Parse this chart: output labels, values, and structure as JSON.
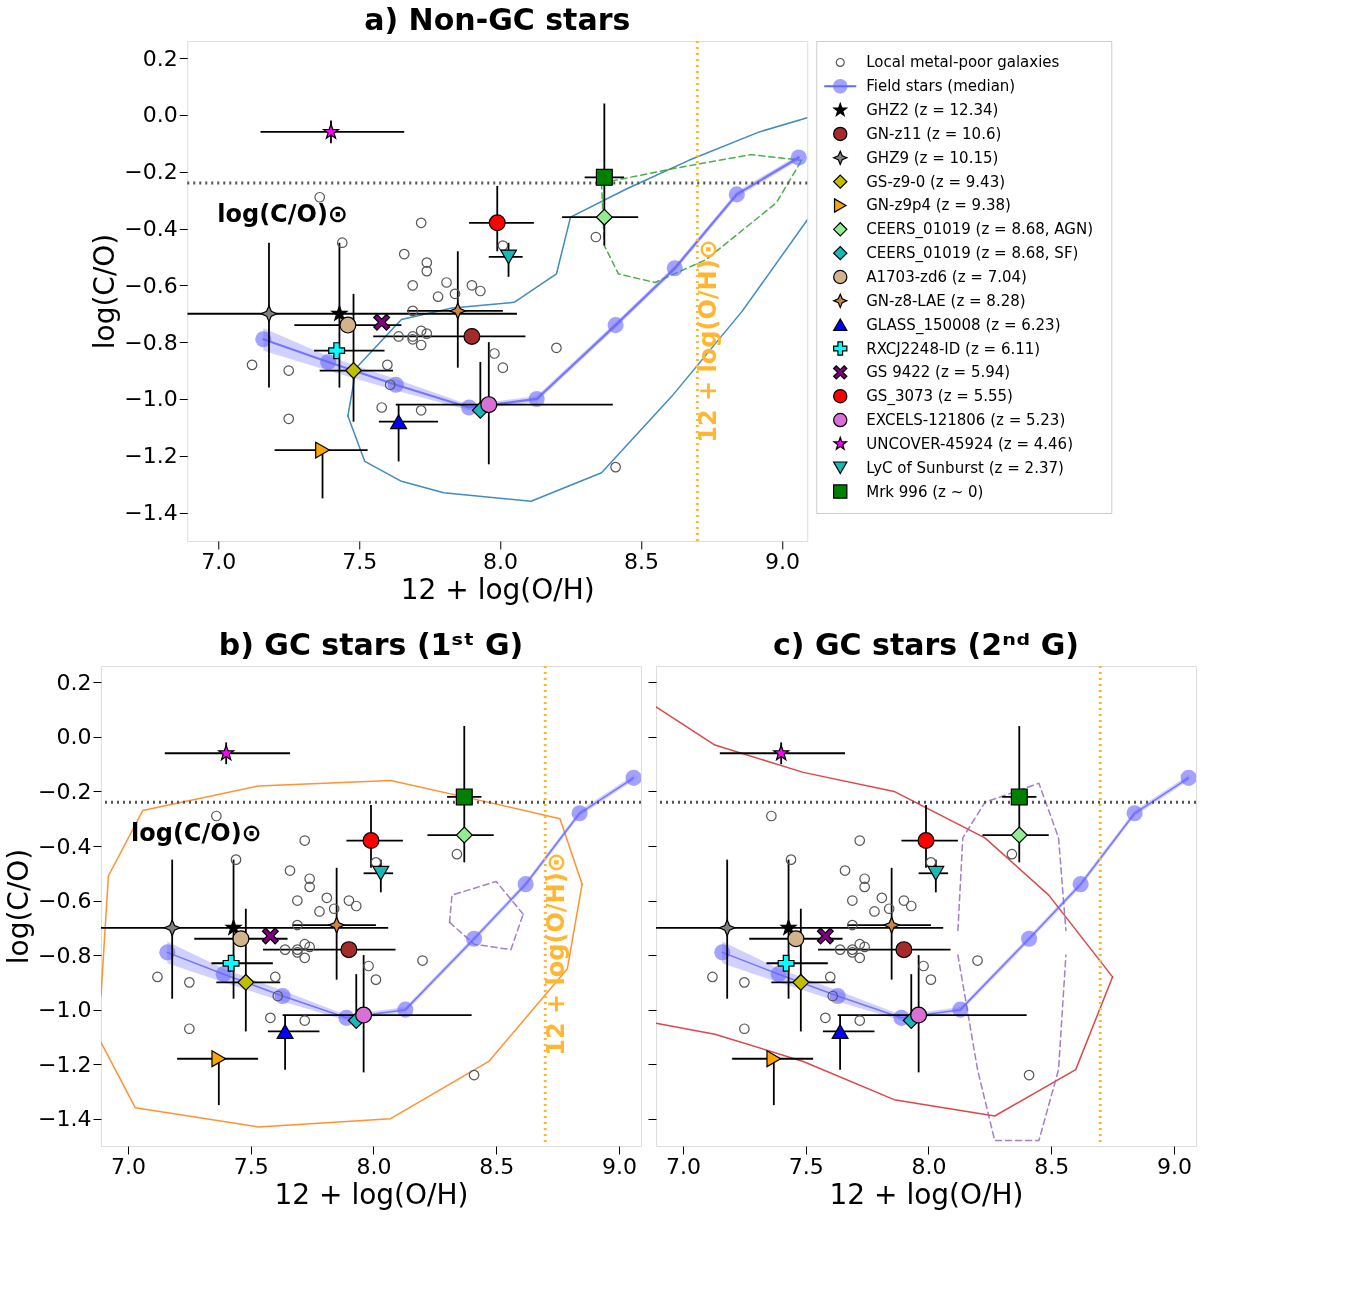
{
  "chart_data": [
    {
      "type": "scatter",
      "title": "a) Non-GC stars",
      "xlabel": "12 + log(O/H)",
      "ylabel": "log(C/O)",
      "xlim": [
        6.89,
        9.09
      ],
      "ylim": [
        -1.5,
        0.26
      ],
      "xticks": [
        {
          "value": 7,
          "label": "7.0"
        },
        {
          "value": 7.5,
          "label": "7.5"
        },
        {
          "value": 8,
          "label": "8.0"
        },
        {
          "value": 8.5,
          "label": "8.5"
        },
        {
          "value": 9,
          "label": "9.0"
        }
      ],
      "yticks": [
        {
          "value": 0.2,
          "label": "0.2"
        },
        {
          "value": 0,
          "label": "0.0"
        },
        {
          "value": -0.2,
          "label": "−0.2"
        },
        {
          "value": -0.4,
          "label": "−0.4"
        },
        {
          "value": -0.6,
          "label": "−0.6"
        },
        {
          "value": -0.8,
          "label": "−0.8"
        },
        {
          "value": -1.0,
          "label": "−1.0"
        },
        {
          "value": -1.2,
          "label": "−1.2"
        },
        {
          "value": -1.4,
          "label": "−1.4"
        }
      ],
      "grid": false,
      "legend": "right",
      "ref_lines": [
        {
          "axis": "y",
          "value": -0.24,
          "label": "log(C/O)⊙",
          "color": "#555555",
          "line_style": "dotted"
        },
        {
          "axis": "x",
          "value": 8.7,
          "label": "12 + log(O/H)⊙",
          "color": "#ffb733",
          "line_style": "dotted"
        }
      ],
      "series": [
        {
          "type": "line",
          "line_style": "solid",
          "color": "#1f77b4",
          "x": [
            7.46,
            7.52,
            7.65,
            7.8,
            8.11,
            8.36,
            8.61,
            8.86,
            9.09
          ],
          "values": [
            -1.06,
            -1.22,
            -1.29,
            -1.33,
            -1.36,
            -1.26,
            -0.99,
            -0.69,
            -0.37
          ]
        },
        {
          "type": "line",
          "line_style": "solid",
          "color": "#1f77b4",
          "x": [
            7.46,
            7.49,
            7.65,
            7.83,
            8.05,
            8.2,
            8.25,
            8.45,
            8.67,
            8.92,
            9.09
          ],
          "values": [
            -1.06,
            -0.89,
            -0.72,
            -0.68,
            -0.66,
            -0.56,
            -0.36,
            -0.26,
            -0.16,
            -0.06,
            -0.01
          ]
        },
        {
          "type": "line",
          "line_style": "dashed",
          "color": "#2ca02c",
          "x": [
            8.36,
            8.61,
            8.89,
            9.07
          ],
          "values": [
            -0.24,
            -0.19,
            -0.14,
            -0.16
          ]
        },
        {
          "type": "line",
          "line_style": "dashed",
          "color": "#2ca02c",
          "x": [
            8.36,
            8.37,
            8.42,
            8.55,
            8.73,
            8.98,
            9.07
          ],
          "values": [
            -0.24,
            -0.46,
            -0.56,
            -0.59,
            -0.51,
            -0.31,
            -0.16
          ]
        },
        {
          "name": "Local metal-poor galaxies",
          "type": "scatter",
          "marker": "circle_open",
          "color": "#555555",
          "x": [
            7.36,
            7.44,
            7.12,
            7.25,
            7.25,
            7.72,
            7.66,
            7.74,
            7.74,
            7.69,
            7.81,
            7.84,
            7.78,
            7.9,
            7.93,
            7.69,
            7.69,
            7.72,
            7.69,
            7.64,
            7.74,
            7.72,
            7.6,
            7.61,
            7.58,
            7.72,
            7.91,
            7.98,
            8.01,
            8.2,
            8.41,
            8.34,
            8.01
          ],
          "values": [
            -0.29,
            -0.45,
            -0.88,
            -0.9,
            -1.07,
            -0.38,
            -0.49,
            -0.52,
            -0.55,
            -0.6,
            -0.59,
            -0.63,
            -0.64,
            -0.6,
            -0.62,
            -0.69,
            -0.78,
            -0.76,
            -0.79,
            -0.78,
            -0.77,
            -0.81,
            -0.88,
            -0.95,
            -1.03,
            -1.04,
            null,
            -0.84,
            -0.89,
            -0.82,
            -1.24,
            -0.43,
            -0.46
          ]
        },
        {
          "name": "Field stars (median)",
          "type": "line",
          "marker": "circle",
          "line_style": "solid",
          "color": "#6666ff",
          "x": [
            7.16,
            7.39,
            7.63,
            7.89,
            8.13,
            8.41,
            8.62,
            8.84,
            9.06
          ],
          "values": [
            -0.79,
            -0.87,
            -0.95,
            -1.03,
            -1.0,
            -0.74,
            -0.54,
            -0.28,
            -0.15
          ],
          "lower": [
            -0.83,
            -0.9,
            -0.97,
            -1.04,
            -1.01,
            -0.75,
            -0.55,
            -0.29,
            -0.16
          ],
          "upper": [
            -0.75,
            -0.85,
            -0.93,
            -1.02,
            -0.99,
            -0.73,
            -0.53,
            -0.27,
            -0.14
          ]
        },
        {
          "name": "GHZ2 (z = 12.34)",
          "type": "scatter",
          "marker": "star",
          "color": "#000000",
          "x": [
            7.43
          ],
          "values": [
            -0.7
          ],
          "errors": [
            [
              -0.96,
              -0.45
            ]
          ],
          "xerrors": [
            null
          ]
        },
        {
          "name": "GN-z11 (z = 10.6)",
          "type": "scatter",
          "marker": "circle",
          "color": "#a52a2a",
          "x": [
            7.9
          ],
          "values": [
            -0.78
          ],
          "errors": [
            null
          ],
          "xerrors": [
            [
              7.55,
              8.09
            ]
          ]
        },
        {
          "name": "GHZ9 (z = 10.15)",
          "type": "scatter",
          "marker": "star4",
          "color": "#808080",
          "x": [
            7.18
          ],
          "values": [
            -0.7
          ],
          "errors": [
            [
              -0.96,
              -0.45
            ]
          ],
          "xerrors": [
            [
              6.89,
              8.06
            ]
          ]
        },
        {
          "name": "GS-z9-0 (z = 9.43)",
          "type": "scatter",
          "marker": "diamond",
          "color": "#bfbf00",
          "x": [
            7.48
          ],
          "values": [
            -0.9
          ],
          "errors": [
            [
              -1.08,
              -0.63
            ]
          ],
          "xerrors": [
            [
              7.36,
              7.62
            ]
          ]
        },
        {
          "name": "GN-z9p4 (z = 9.38)",
          "type": "scatter",
          "marker": "triangle-right",
          "color": "#ffa500",
          "x": [
            7.37
          ],
          "values": [
            -1.18
          ],
          "errors": [
            [
              -1.35,
              -1.18
            ]
          ],
          "xerrors": [
            [
              7.2,
              7.53
            ]
          ]
        },
        {
          "name": "CEERS_01019 (z = 8.68, AGN)",
          "type": "scatter",
          "marker": "diamond",
          "color": "#90ee90",
          "x": [
            8.37
          ],
          "values": [
            -0.36
          ],
          "errors": [
            null
          ],
          "xerrors": [
            [
              8.22,
              8.49
            ]
          ]
        },
        {
          "name": "CEERS_01019 (z = 8.68, SF)",
          "type": "scatter",
          "marker": "diamond",
          "color": "#17b8b8",
          "x": [
            7.93
          ],
          "values": [
            -1.04
          ],
          "errors": [
            [
              -1.04,
              -0.87
            ]
          ],
          "xerrors": [
            null
          ]
        },
        {
          "name": "A1703-zd6 (z = 7.04)",
          "type": "scatter",
          "color": "#d2b48c",
          "x": [
            7.46
          ],
          "values": [
            -0.74
          ],
          "errors": [
            null
          ],
          "xerrors": [
            [
              7.27,
              7.65
            ]
          ]
        },
        {
          "name": "GN-z8-LAE (z = 8.28)",
          "type": "scatter",
          "marker": "star4",
          "color": "#cd853f",
          "x": [
            7.85
          ],
          "values": [
            -0.69
          ],
          "errors": [
            [
              -0.89,
              -0.48
            ]
          ],
          "xerrors": [
            [
              7.67,
              8.01
            ]
          ]
        },
        {
          "name": "GLASS_150008 (z = 6.23)",
          "type": "scatter",
          "marker": "triangle",
          "color": "#0000ff",
          "x": [
            7.64
          ],
          "values": [
            -1.08
          ],
          "errors": [
            [
              -1.22,
              -1.02
            ]
          ],
          "xerrors": [
            [
              7.57,
              7.78
            ]
          ]
        },
        {
          "name": "RXCJ2248-ID (z = 6.11)",
          "type": "scatter",
          "marker": "cross",
          "color": "#00ffff",
          "x": [
            7.42
          ],
          "values": [
            -0.83
          ],
          "errors": [
            null
          ],
          "xerrors": [
            [
              7.34,
              7.59
            ]
          ]
        },
        {
          "name": "GS 9422 (z = 5.94)",
          "type": "scatter",
          "marker": "x",
          "color": "#800080",
          "x": [
            7.58
          ],
          "values": [
            -0.73
          ],
          "errors": [
            null
          ],
          "xerrors": [
            null
          ]
        },
        {
          "name": "GS_3073 (z = 5.55)",
          "type": "scatter",
          "color": "#ff0000",
          "x": [
            7.99
          ],
          "values": [
            -0.38
          ],
          "errors": [
            [
              -0.48,
              -0.25
            ]
          ],
          "xerrors": [
            [
              7.89,
              8.12
            ]
          ]
        },
        {
          "name": "EXCELS-121806 (z = 5.23)",
          "type": "scatter",
          "color": "#da70d6",
          "x": [
            7.96
          ],
          "values": [
            -1.02
          ],
          "errors": [
            [
              -1.23,
              -0.8
            ]
          ],
          "xerrors": [
            [
              7.63,
              8.4
            ]
          ]
        },
        {
          "name": "UNCOVER-45924 (z = 4.46)",
          "type": "scatter",
          "marker": "star",
          "color": "#ff00ff",
          "x": [
            7.4
          ],
          "values": [
            -0.06
          ],
          "errors": [
            [
              -0.1,
              -0.02
            ]
          ],
          "xerrors": [
            [
              7.15,
              7.66
            ]
          ]
        },
        {
          "name": "LyC of Sunburst (z = 2.37)",
          "type": "scatter",
          "marker": "triangle-down",
          "color": "#17b8b8",
          "x": [
            8.03
          ],
          "values": [
            -0.5
          ],
          "errors": [
            [
              -0.57,
              -0.45
            ]
          ],
          "xerrors": [
            [
              7.96,
              8.08
            ]
          ]
        },
        {
          "name": "Mrk 996 (z ~ 0)",
          "type": "scatter",
          "marker": "square",
          "color": "#008000",
          "x": [
            8.37
          ],
          "values": [
            -0.22
          ],
          "errors": [
            [
              -0.46,
              0.04
            ]
          ],
          "xerrors": [
            [
              8.3,
              8.44
            ]
          ]
        }
      ]
    },
    {
      "type": "scatter",
      "title": "b) GC stars (1ˢᵗ G)",
      "xlabel": "12 + log(O/H)",
      "ylabel": "log(C/O)",
      "xlim": [
        6.89,
        9.09
      ],
      "ylim": [
        -1.5,
        0.26
      ],
      "xticks": [
        {
          "value": 7,
          "label": "7.0"
        },
        {
          "value": 7.5,
          "label": "7.5"
        },
        {
          "value": 8,
          "label": "8.0"
        },
        {
          "value": 8.5,
          "label": "8.5"
        },
        {
          "value": 9,
          "label": "9.0"
        }
      ],
      "yticks": [
        {
          "value": 0.2,
          "label": "0.2"
        },
        {
          "value": 0,
          "label": "0.0"
        },
        {
          "value": -0.2,
          "label": "−0.2"
        },
        {
          "value": -0.4,
          "label": "−0.4"
        },
        {
          "value": -0.6,
          "label": "−0.6"
        },
        {
          "value": -0.8,
          "label": "−0.8"
        },
        {
          "value": -1.0,
          "label": "−1.0"
        },
        {
          "value": -1.2,
          "label": "−1.2"
        },
        {
          "value": -1.4,
          "label": "−1.4"
        }
      ],
      "grid": false,
      "legend": false,
      "ref_lines": [
        {
          "axis": "y",
          "value": -0.24,
          "label": "log(C/O)⊙",
          "color": "#555555",
          "line_style": "dotted"
        },
        {
          "axis": "x",
          "value": 8.7,
          "label": "12 + log(O/H)⊙",
          "color": "#ffb733",
          "line_style": "dotted"
        }
      ],
      "series": [
        {
          "type": "line",
          "line_style": "solid",
          "color": "#ff7f0e",
          "x": [
            6.89,
            6.92,
            7.06,
            7.53,
            8.07,
            8.47,
            8.76,
            8.85
          ],
          "values": [
            -0.95,
            -0.51,
            -0.27,
            -0.18,
            -0.16,
            -0.24,
            -0.3,
            -0.54
          ]
        },
        {
          "type": "line",
          "line_style": "solid",
          "color": "#ff7f0e",
          "x": [
            6.89,
            7.03,
            7.53,
            8.07,
            8.47,
            8.79,
            8.85
          ],
          "values": [
            -1.12,
            -1.36,
            -1.43,
            -1.4,
            -1.19,
            -0.85,
            -0.54
          ]
        },
        {
          "type": "line",
          "line_style": "dashed",
          "color": "#9467bd",
          "x": [
            8.31,
            8.32,
            8.5,
            8.61
          ],
          "values": [
            -0.68,
            -0.58,
            -0.53,
            -0.65
          ]
        },
        {
          "type": "line",
          "line_style": "dashed",
          "color": "#9467bd",
          "x": [
            8.31,
            8.41,
            8.56,
            8.61
          ],
          "values": [
            -0.68,
            -0.76,
            -0.78,
            -0.65
          ]
        },
        {
          "type": "scatter",
          "marker": "circle_open",
          "color": "#555555",
          "x": [
            7.36,
            7.44,
            7.12,
            7.25,
            7.25,
            7.72,
            7.66,
            7.74,
            7.74,
            7.69,
            7.81,
            7.84,
            7.78,
            7.9,
            7.93,
            7.69,
            7.69,
            7.72,
            7.69,
            7.64,
            7.74,
            7.72,
            7.6,
            7.61,
            7.58,
            7.72,
            7.91,
            7.98,
            8.01,
            8.2,
            8.41,
            8.34,
            8.01
          ],
          "values": [
            -0.29,
            -0.45,
            -0.88,
            -0.9,
            -1.07,
            -0.38,
            -0.49,
            -0.52,
            -0.55,
            -0.6,
            -0.59,
            -0.63,
            -0.64,
            -0.6,
            -0.62,
            -0.69,
            -0.78,
            -0.76,
            -0.79,
            -0.78,
            -0.77,
            -0.81,
            -0.88,
            -0.95,
            -1.03,
            -1.04,
            null,
            -0.84,
            -0.89,
            -0.82,
            -1.24,
            -0.43,
            -0.46
          ]
        },
        {
          "type": "line",
          "marker": "circle",
          "line_style": "solid",
          "color": "#6666ff",
          "x": [
            7.16,
            7.39,
            7.63,
            7.89,
            8.13,
            8.41,
            8.62,
            8.84,
            9.06
          ],
          "values": [
            -0.79,
            -0.87,
            -0.95,
            -1.03,
            -1.0,
            -0.74,
            -0.54,
            -0.28,
            -0.15
          ],
          "lower": [
            -0.83,
            -0.9,
            -0.97,
            -1.04,
            -1.01,
            -0.75,
            -0.55,
            -0.29,
            -0.16
          ],
          "upper": [
            -0.75,
            -0.85,
            -0.93,
            -1.02,
            -0.99,
            -0.73,
            -0.53,
            -0.27,
            -0.14
          ]
        },
        {
          "type": "scatter",
          "marker": "star",
          "color": "#000000",
          "x": [
            7.43
          ],
          "values": [
            -0.7
          ],
          "errors": [
            [
              -0.96,
              -0.45
            ]
          ],
          "xerrors": [
            null
          ]
        },
        {
          "type": "scatter",
          "marker": "circle",
          "color": "#a52a2a",
          "x": [
            7.9
          ],
          "values": [
            -0.78
          ],
          "errors": [
            null
          ],
          "xerrors": [
            [
              7.55,
              8.09
            ]
          ]
        },
        {
          "type": "scatter",
          "marker": "star4",
          "color": "#808080",
          "x": [
            7.18
          ],
          "values": [
            -0.7
          ],
          "errors": [
            [
              -0.96,
              -0.45
            ]
          ],
          "xerrors": [
            [
              6.89,
              8.06
            ]
          ]
        },
        {
          "type": "scatter",
          "marker": "diamond",
          "color": "#bfbf00",
          "x": [
            7.48
          ],
          "values": [
            -0.9
          ],
          "errors": [
            [
              -1.08,
              -0.63
            ]
          ],
          "xerrors": [
            [
              7.36,
              7.62
            ]
          ]
        },
        {
          "type": "scatter",
          "marker": "triangle-right",
          "color": "#ffa500",
          "x": [
            7.37
          ],
          "values": [
            -1.18
          ],
          "errors": [
            [
              -1.35,
              -1.18
            ]
          ],
          "xerrors": [
            [
              7.2,
              7.53
            ]
          ]
        },
        {
          "type": "scatter",
          "marker": "diamond",
          "color": "#90ee90",
          "x": [
            8.37
          ],
          "values": [
            -0.36
          ],
          "errors": [
            null
          ],
          "xerrors": [
            [
              8.22,
              8.49
            ]
          ]
        },
        {
          "type": "scatter",
          "marker": "diamond",
          "color": "#17b8b8",
          "x": [
            7.93
          ],
          "values": [
            -1.04
          ],
          "errors": [
            [
              -1.04,
              -0.87
            ]
          ],
          "xerrors": [
            null
          ]
        },
        {
          "type": "scatter",
          "color": "#d2b48c",
          "x": [
            7.46
          ],
          "values": [
            -0.74
          ],
          "errors": [
            null
          ],
          "xerrors": [
            [
              7.27,
              7.65
            ]
          ]
        },
        {
          "type": "scatter",
          "marker": "star4",
          "color": "#cd853f",
          "x": [
            7.85
          ],
          "values": [
            -0.69
          ],
          "errors": [
            [
              -0.89,
              -0.48
            ]
          ],
          "xerrors": [
            [
              7.67,
              8.01
            ]
          ]
        },
        {
          "type": "scatter",
          "marker": "triangle",
          "color": "#0000ff",
          "x": [
            7.64
          ],
          "values": [
            -1.08
          ],
          "errors": [
            [
              -1.22,
              -1.02
            ]
          ],
          "xerrors": [
            [
              7.57,
              7.78
            ]
          ]
        },
        {
          "type": "scatter",
          "marker": "cross",
          "color": "#00ffff",
          "x": [
            7.42
          ],
          "values": [
            -0.83
          ],
          "errors": [
            null
          ],
          "xerrors": [
            [
              7.34,
              7.59
            ]
          ]
        },
        {
          "type": "scatter",
          "marker": "x",
          "color": "#800080",
          "x": [
            7.58
          ],
          "values": [
            -0.73
          ],
          "errors": [
            null
          ],
          "xerrors": [
            null
          ]
        },
        {
          "type": "scatter",
          "color": "#ff0000",
          "x": [
            7.99
          ],
          "values": [
            -0.38
          ],
          "errors": [
            [
              -0.48,
              -0.25
            ]
          ],
          "xerrors": [
            [
              7.89,
              8.12
            ]
          ]
        },
        {
          "type": "scatter",
          "color": "#da70d6",
          "x": [
            7.96
          ],
          "values": [
            -1.02
          ],
          "errors": [
            [
              -1.23,
              -0.8
            ]
          ],
          "xerrors": [
            [
              7.63,
              8.4
            ]
          ]
        },
        {
          "type": "scatter",
          "marker": "star",
          "color": "#ff00ff",
          "x": [
            7.4
          ],
          "values": [
            -0.06
          ],
          "errors": [
            [
              -0.1,
              -0.02
            ]
          ],
          "xerrors": [
            [
              7.15,
              7.66
            ]
          ]
        },
        {
          "type": "scatter",
          "marker": "triangle-down",
          "color": "#17b8b8",
          "x": [
            8.03
          ],
          "values": [
            -0.5
          ],
          "errors": [
            [
              -0.57,
              -0.45
            ]
          ],
          "xerrors": [
            [
              7.96,
              8.08
            ]
          ]
        },
        {
          "type": "scatter",
          "marker": "square",
          "color": "#008000",
          "x": [
            8.37
          ],
          "values": [
            -0.22
          ],
          "errors": [
            [
              -0.46,
              0.04
            ]
          ],
          "xerrors": [
            [
              8.3,
              8.44
            ]
          ]
        }
      ]
    },
    {
      "type": "scatter",
      "title": "c) GC stars (2ⁿᵈ G)",
      "xlabel": "12 + log(O/H)",
      "xlim": [
        6.89,
        9.09
      ],
      "ylim": [
        -1.5,
        0.26
      ],
      "tick_labels": "x",
      "xticks": [
        {
          "value": 7,
          "label": "7.0"
        },
        {
          "value": 7.5,
          "label": "7.5"
        },
        {
          "value": 8,
          "label": "8.0"
        },
        {
          "value": 8.5,
          "label": "8.5"
        },
        {
          "value": 9,
          "label": "9.0"
        }
      ],
      "yticks": [
        {
          "value": 0.2,
          "label": null
        },
        {
          "value": 0,
          "label": null
        },
        {
          "value": -0.2,
          "label": null
        },
        {
          "value": -0.4,
          "label": null
        },
        {
          "value": -0.6,
          "label": null
        },
        {
          "value": -0.8,
          "label": null
        },
        {
          "value": -1.0,
          "label": null
        },
        {
          "value": -1.2,
          "label": null
        },
        {
          "value": -1.4,
          "label": null
        }
      ],
      "grid": false,
      "legend": false,
      "ref_lines": [
        {
          "axis": "y",
          "value": -0.24,
          "color": "#555555",
          "line_style": "dotted"
        },
        {
          "axis": "x",
          "value": 8.7,
          "color": "#ffb733",
          "line_style": "dotted"
        }
      ],
      "series": [
        {
          "type": "line",
          "line_style": "solid",
          "color": "#d62728",
          "x": [
            6.89,
            7.13,
            7.49,
            7.86,
            8.23,
            8.49,
            8.75
          ],
          "values": [
            0.11,
            -0.03,
            -0.13,
            -0.2,
            -0.37,
            -0.58,
            -0.88
          ]
        },
        {
          "type": "line",
          "line_style": "solid",
          "color": "#d62728",
          "x": [
            6.89,
            7.13,
            7.49,
            7.86,
            8.27,
            8.6,
            8.75
          ],
          "values": [
            -1.05,
            -1.09,
            -1.19,
            -1.33,
            -1.39,
            -1.22,
            -0.88
          ]
        },
        {
          "type": "line",
          "line_style": "dashed",
          "color": "#9467bd",
          "x": [
            8.12,
            8.14,
            8.23,
            8.45,
            8.53,
            8.56
          ],
          "values": [
            -0.71,
            -0.37,
            -0.24,
            -0.17,
            -0.37,
            -0.71
          ]
        },
        {
          "type": "line",
          "line_style": "dashed",
          "color": "#9467bd",
          "x": [
            8.12,
            8.2,
            8.27,
            8.45,
            8.53,
            8.56
          ],
          "values": [
            -0.8,
            -1.22,
            -1.48,
            -1.48,
            -1.22,
            -0.8
          ]
        },
        {
          "type": "scatter",
          "marker": "circle_open",
          "color": "#555555",
          "x": [
            7.36,
            7.44,
            7.12,
            7.25,
            7.25,
            7.72,
            7.66,
            7.74,
            7.74,
            7.69,
            7.81,
            7.84,
            7.78,
            7.9,
            7.93,
            7.69,
            7.69,
            7.72,
            7.69,
            7.64,
            7.74,
            7.72,
            7.6,
            7.61,
            7.58,
            7.72,
            7.91,
            7.98,
            8.01,
            8.2,
            8.41,
            8.34,
            8.01
          ],
          "values": [
            -0.29,
            -0.45,
            -0.88,
            -0.9,
            -1.07,
            -0.38,
            -0.49,
            -0.52,
            -0.55,
            -0.6,
            -0.59,
            -0.63,
            -0.64,
            -0.6,
            -0.62,
            -0.69,
            -0.78,
            -0.76,
            -0.79,
            -0.78,
            -0.77,
            -0.81,
            -0.88,
            -0.95,
            -1.03,
            -1.04,
            null,
            -0.84,
            -0.89,
            -0.82,
            -1.24,
            -0.43,
            -0.46
          ]
        },
        {
          "type": "line",
          "marker": "circle",
          "line_style": "solid",
          "color": "#6666ff",
          "x": [
            7.16,
            7.39,
            7.63,
            7.89,
            8.13,
            8.41,
            8.62,
            8.84,
            9.06
          ],
          "values": [
            -0.79,
            -0.87,
            -0.95,
            -1.03,
            -1.0,
            -0.74,
            -0.54,
            -0.28,
            -0.15
          ],
          "lower": [
            -0.83,
            -0.9,
            -0.97,
            -1.04,
            -1.01,
            -0.75,
            -0.55,
            -0.29,
            -0.16
          ],
          "upper": [
            -0.75,
            -0.85,
            -0.93,
            -1.02,
            -0.99,
            -0.73,
            -0.53,
            -0.27,
            -0.14
          ]
        },
        {
          "type": "scatter",
          "marker": "star",
          "color": "#000000",
          "x": [
            7.43
          ],
          "values": [
            -0.7
          ],
          "errors": [
            [
              -0.96,
              -0.45
            ]
          ],
          "xerrors": [
            null
          ]
        },
        {
          "type": "scatter",
          "marker": "circle",
          "color": "#a52a2a",
          "x": [
            7.9
          ],
          "values": [
            -0.78
          ],
          "errors": [
            null
          ],
          "xerrors": [
            [
              7.55,
              8.09
            ]
          ]
        },
        {
          "type": "scatter",
          "marker": "star4",
          "color": "#808080",
          "x": [
            7.18
          ],
          "values": [
            -0.7
          ],
          "errors": [
            [
              -0.96,
              -0.45
            ]
          ],
          "xerrors": [
            [
              6.89,
              8.06
            ]
          ]
        },
        {
          "type": "scatter",
          "marker": "diamond",
          "color": "#bfbf00",
          "x": [
            7.48
          ],
          "values": [
            -0.9
          ],
          "errors": [
            [
              -1.08,
              -0.63
            ]
          ],
          "xerrors": [
            [
              7.36,
              7.62
            ]
          ]
        },
        {
          "type": "scatter",
          "marker": "triangle-right",
          "color": "#ffa500",
          "x": [
            7.37
          ],
          "values": [
            -1.18
          ],
          "errors": [
            [
              -1.35,
              -1.18
            ]
          ],
          "xerrors": [
            [
              7.2,
              7.53
            ]
          ]
        },
        {
          "type": "scatter",
          "marker": "diamond",
          "color": "#90ee90",
          "x": [
            8.37
          ],
          "values": [
            -0.36
          ],
          "errors": [
            null
          ],
          "xerrors": [
            [
              8.22,
              8.49
            ]
          ]
        },
        {
          "type": "scatter",
          "marker": "diamond",
          "color": "#17b8b8",
          "x": [
            7.93
          ],
          "values": [
            -1.04
          ],
          "errors": [
            [
              -1.04,
              -0.87
            ]
          ],
          "xerrors": [
            null
          ]
        },
        {
          "type": "scatter",
          "color": "#d2b48c",
          "x": [
            7.46
          ],
          "values": [
            -0.74
          ],
          "errors": [
            null
          ],
          "xerrors": [
            [
              7.27,
              7.65
            ]
          ]
        },
        {
          "type": "scatter",
          "marker": "star4",
          "color": "#cd853f",
          "x": [
            7.85
          ],
          "values": [
            -0.69
          ],
          "errors": [
            [
              -0.89,
              -0.48
            ]
          ],
          "xerrors": [
            [
              7.67,
              8.01
            ]
          ]
        },
        {
          "type": "scatter",
          "marker": "triangle",
          "color": "#0000ff",
          "x": [
            7.64
          ],
          "values": [
            -1.08
          ],
          "errors": [
            [
              -1.22,
              -1.02
            ]
          ],
          "xerrors": [
            [
              7.57,
              7.78
            ]
          ]
        },
        {
          "type": "scatter",
          "marker": "cross",
          "color": "#00ffff",
          "x": [
            7.42
          ],
          "values": [
            -0.83
          ],
          "errors": [
            null
          ],
          "xerrors": [
            [
              7.34,
              7.59
            ]
          ]
        },
        {
          "type": "scatter",
          "marker": "x",
          "color": "#800080",
          "x": [
            7.58
          ],
          "values": [
            -0.73
          ],
          "errors": [
            null
          ],
          "xerrors": [
            null
          ]
        },
        {
          "type": "scatter",
          "color": "#ff0000",
          "x": [
            7.99
          ],
          "values": [
            -0.38
          ],
          "errors": [
            [
              -0.48,
              -0.25
            ]
          ],
          "xerrors": [
            [
              7.89,
              8.12
            ]
          ]
        },
        {
          "type": "scatter",
          "color": "#da70d6",
          "x": [
            7.96
          ],
          "values": [
            -1.02
          ],
          "errors": [
            [
              -1.23,
              -0.8
            ]
          ],
          "xerrors": [
            [
              7.63,
              8.4
            ]
          ]
        },
        {
          "type": "scatter",
          "marker": "star",
          "color": "#ff00ff",
          "x": [
            7.4
          ],
          "values": [
            -0.06
          ],
          "errors": [
            [
              -0.1,
              -0.02
            ]
          ],
          "xerrors": [
            [
              7.15,
              7.66
            ]
          ]
        },
        {
          "type": "scatter",
          "marker": "triangle-down",
          "color": "#17b8b8",
          "x": [
            8.03
          ],
          "values": [
            -0.5
          ],
          "errors": [
            [
              -0.57,
              -0.45
            ]
          ],
          "xerrors": [
            [
              7.96,
              8.08
            ]
          ]
        },
        {
          "type": "scatter",
          "marker": "square",
          "color": "#008000",
          "x": [
            8.37
          ],
          "values": [
            -0.22
          ],
          "errors": [
            [
              -0.46,
              0.04
            ]
          ],
          "xerrors": [
            [
              8.3,
              8.44
            ]
          ]
        }
      ]
    }
  ]
}
